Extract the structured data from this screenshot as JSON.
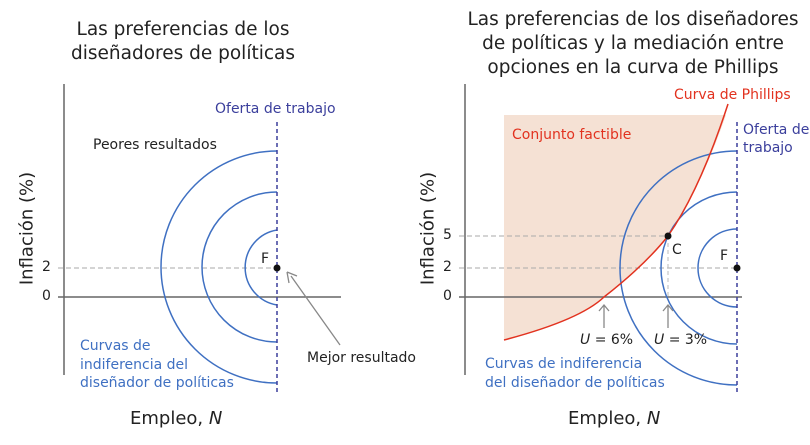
{
  "left": {
    "title_1": "Las preferencias de los",
    "title_2": "diseñadores de políticas",
    "y_label": "Inflación (%)",
    "x_label_text": "Empleo, ",
    "x_label_var": "N",
    "ticks": [
      "2",
      "0"
    ],
    "labor_supply": "Oferta de trabajo",
    "worse": "Peores resultados",
    "best": "Mejor resultado",
    "point_f": "F",
    "indiff_1": "Curvas de",
    "indiff_2": "indiferencia del",
    "indiff_3": "diseñador de políticas"
  },
  "right": {
    "title_1": "Las preferencias de los diseñadores",
    "title_2": "de políticas y la mediación entre",
    "title_3": "opciones en la curva de Phillips",
    "y_label": "Inflación (%)",
    "x_label_text": "Empleo, ",
    "x_label_var": "N",
    "ticks": [
      "5",
      "2",
      "0"
    ],
    "phillips": "Curva de Phillips",
    "feasible": "Conjunto factible",
    "labor_supply_1": "Oferta de",
    "labor_supply_2": "trabajo",
    "point_c": "C",
    "point_f": "F",
    "u6_var": "U",
    "u6_val": " = 6%",
    "u3_var": "U",
    "u3_val": " = 3%",
    "indiff_1": "Curvas de indiferencia",
    "indiff_2": "del diseñador de políticas"
  },
  "colors": {
    "indifference": "#3f70c2",
    "labor_supply": "#3b3f9c",
    "phillips": "#e2321f",
    "feasible_fill": "#f5e1d4",
    "axis": "#666666",
    "dashed": "#aaaaaa"
  }
}
